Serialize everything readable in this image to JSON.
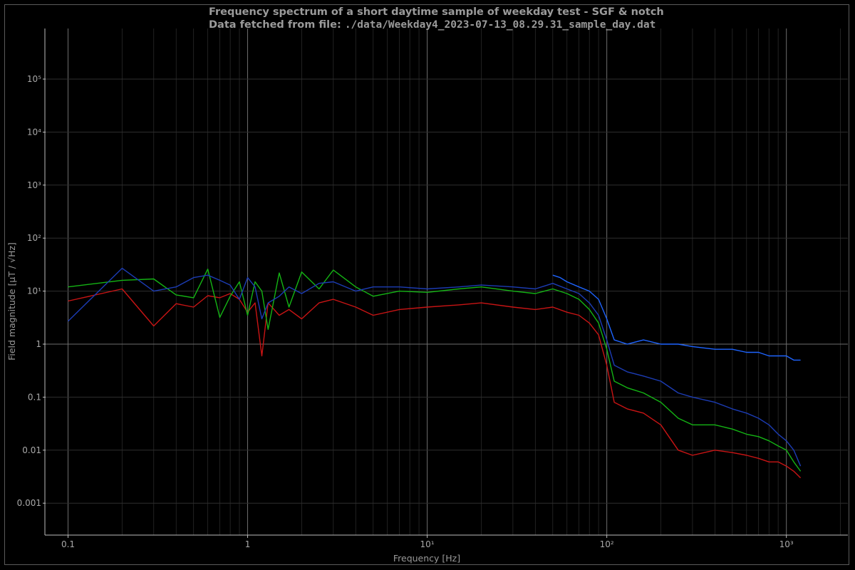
{
  "chart_data": {
    "type": "line",
    "title_line1": "Frequency spectrum of a short daytime sample of weekday test - SGF & notch",
    "title_line2_prefix": "Data fetched from file: ",
    "title_line2_path": "./data/Weekday4_2023-07-13_08.29.31_sample_day.dat",
    "xlabel": "Frequency [Hz]",
    "ylabel": "Field magnitude [µT / √Hz]",
    "x_scale": "log",
    "y_scale": "log",
    "xlim": [
      0.075,
      2200
    ],
    "ylim": [
      0.00025,
      900000
    ],
    "grid": true,
    "x_ticks": [
      {
        "value": 0.1,
        "label": "0.1"
      },
      {
        "value": 1,
        "label": "1"
      },
      {
        "value": 10,
        "label": "10¹"
      },
      {
        "value": 100,
        "label": "10²"
      },
      {
        "value": 1000,
        "label": "10³"
      }
    ],
    "y_ticks": [
      {
        "value": 0.001,
        "label": "0.001"
      },
      {
        "value": 0.01,
        "label": "0.01"
      },
      {
        "value": 0.1,
        "label": "0.1"
      },
      {
        "value": 1,
        "label": "1"
      },
      {
        "value": 10,
        "label": "10¹"
      },
      {
        "value": 100,
        "label": "10²"
      },
      {
        "value": 1000,
        "label": "10³"
      },
      {
        "value": 10000,
        "label": "10⁴"
      },
      {
        "value": 100000,
        "label": "10⁵"
      }
    ],
    "series": [
      {
        "color": "#c81414",
        "x": [
          0.1,
          0.2,
          0.3,
          0.4,
          0.5,
          0.6,
          0.7,
          0.8,
          0.9,
          1.0,
          1.1,
          1.2,
          1.3,
          1.5,
          1.7,
          2.0,
          2.5,
          3,
          4,
          5,
          7,
          10,
          15,
          20,
          30,
          40,
          50,
          60,
          70,
          80,
          90,
          100,
          110,
          130,
          160,
          200,
          250,
          300,
          400,
          500,
          600,
          700,
          800,
          900,
          1000,
          1100,
          1200
        ],
        "values": [
          6.5,
          11,
          2.2,
          5.8,
          5.0,
          8.2,
          7.5,
          9.0,
          7.0,
          4.0,
          6.0,
          0.6,
          6.0,
          3.5,
          4.5,
          3.0,
          6.0,
          7.0,
          5.0,
          3.5,
          4.5,
          5.0,
          5.5,
          6.0,
          5.0,
          4.5,
          5.0,
          4.0,
          3.5,
          2.5,
          1.5,
          0.4,
          0.08,
          0.06,
          0.05,
          0.03,
          0.01,
          0.008,
          0.01,
          0.009,
          0.008,
          0.007,
          0.006,
          0.006,
          0.005,
          0.004,
          0.003
        ]
      },
      {
        "color": "#14b414",
        "x": [
          0.1,
          0.2,
          0.3,
          0.4,
          0.5,
          0.6,
          0.7,
          0.8,
          0.9,
          1.0,
          1.1,
          1.2,
          1.3,
          1.5,
          1.7,
          2.0,
          2.5,
          3,
          4,
          5,
          7,
          10,
          15,
          20,
          30,
          40,
          50,
          60,
          70,
          80,
          90,
          100,
          110,
          130,
          160,
          200,
          250,
          300,
          400,
          500,
          600,
          700,
          800,
          900,
          1000,
          1100,
          1200
        ],
        "values": [
          12,
          16,
          17,
          8.5,
          7.5,
          26,
          3.2,
          8.0,
          15,
          3.5,
          15,
          10,
          1.9,
          22,
          5.0,
          23,
          11,
          25,
          12,
          8.0,
          10,
          9.5,
          11,
          12,
          10,
          9.0,
          11,
          9.0,
          7.0,
          4.5,
          2.5,
          0.8,
          0.2,
          0.15,
          0.12,
          0.08,
          0.04,
          0.03,
          0.03,
          0.025,
          0.02,
          0.018,
          0.015,
          0.012,
          0.01,
          0.006,
          0.004
        ]
      },
      {
        "color": "#1c3cb4",
        "x": [
          0.1,
          0.2,
          0.3,
          0.4,
          0.5,
          0.6,
          0.7,
          0.8,
          0.9,
          1.0,
          1.1,
          1.2,
          1.3,
          1.5,
          1.7,
          2.0,
          2.5,
          3,
          4,
          5,
          7,
          10,
          15,
          20,
          30,
          40,
          50,
          60,
          70,
          80,
          90,
          100,
          110,
          130,
          160,
          200,
          250,
          300,
          400,
          500,
          600,
          700,
          800,
          900,
          1000,
          1100,
          1200
        ],
        "values": [
          2.7,
          27,
          10,
          12,
          18,
          20,
          16,
          13,
          7,
          18,
          12,
          3,
          6,
          8,
          12,
          9,
          14,
          15,
          10,
          12,
          12,
          11,
          12,
          13,
          12,
          11,
          14,
          11,
          9,
          6,
          3.5,
          1.2,
          0.4,
          0.3,
          0.25,
          0.2,
          0.12,
          0.1,
          0.08,
          0.06,
          0.05,
          0.04,
          0.03,
          0.02,
          0.015,
          0.01,
          0.005
        ]
      },
      {
        "color": "#1e64ff",
        "x": [
          50,
          55,
          60,
          70,
          80,
          90,
          100,
          110,
          130,
          160,
          200,
          250,
          300,
          400,
          500,
          600,
          700,
          800,
          900,
          1000,
          1100,
          1200
        ],
        "values": [
          20,
          18,
          15,
          12,
          10,
          7,
          3,
          1.2,
          1.0,
          1.2,
          1.0,
          1.0,
          0.9,
          0.8,
          0.8,
          0.7,
          0.7,
          0.6,
          0.6,
          0.6,
          0.5,
          0.5
        ]
      }
    ]
  }
}
